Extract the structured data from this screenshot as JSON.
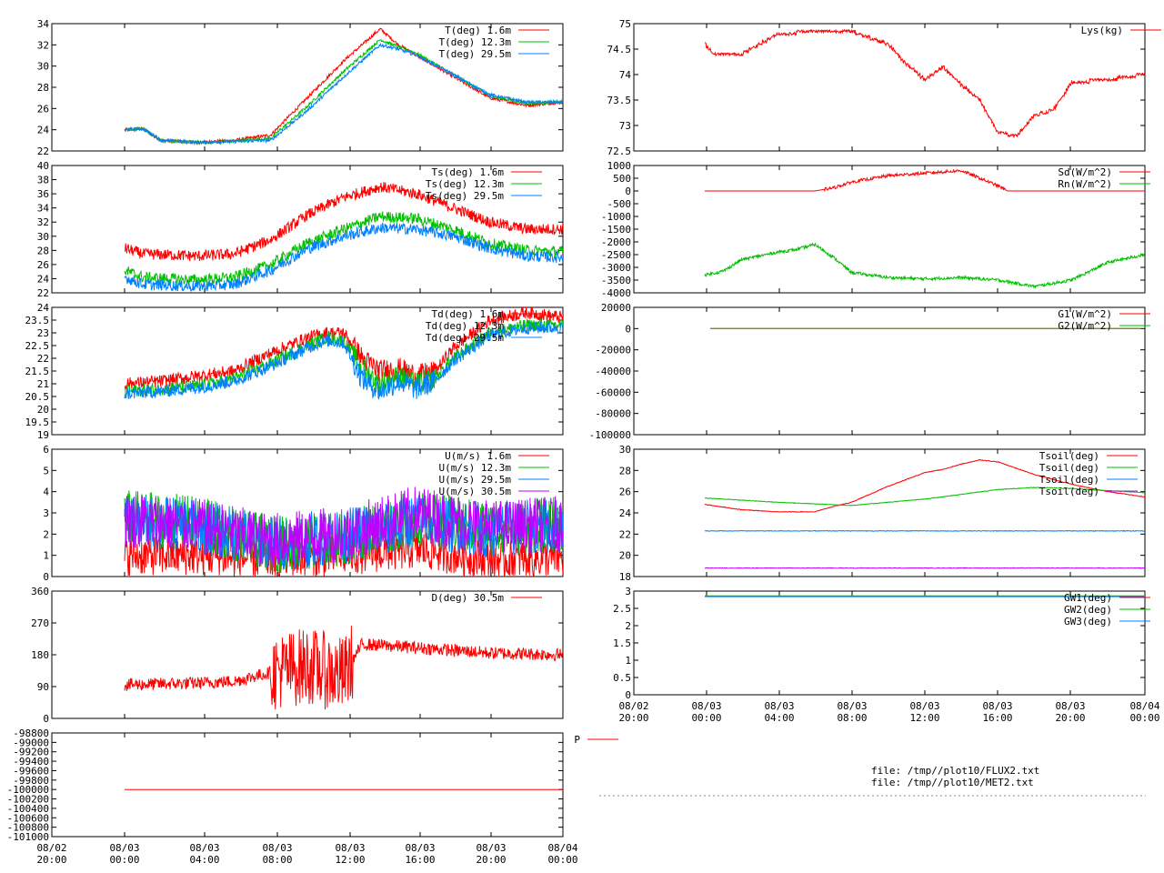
{
  "x_axis": {
    "left": {
      "ticks": [
        [
          "08/02",
          "20:00"
        ],
        [
          "08/03",
          "00:00"
        ],
        [
          "08/03",
          "04:00"
        ],
        [
          "08/03",
          "08:00"
        ],
        [
          "08/03",
          "12:00"
        ],
        [
          "08/03",
          "16:00"
        ],
        [
          "08/03",
          "20:00"
        ],
        [
          "08/04",
          "00:00"
        ]
      ]
    },
    "right": {
      "ticks": [
        [
          "08/02",
          "20:00"
        ],
        [
          "08/03",
          "00:00"
        ],
        [
          "08/03",
          "04:00"
        ],
        [
          "08/03",
          "08:00"
        ],
        [
          "08/03",
          "12:00"
        ],
        [
          "08/03",
          "16:00"
        ],
        [
          "08/03",
          "20:00"
        ],
        [
          "08/04",
          "00:00"
        ]
      ]
    }
  },
  "footer": {
    "files": [
      "file: /tmp//plot10/FLUX2.txt",
      "file: /tmp//plot10/MET2.txt"
    ]
  },
  "chart_data": [
    {
      "type": "line",
      "panel": "air-temperature",
      "ylim": [
        22,
        34
      ],
      "yticks": [
        "22",
        "24",
        "26",
        "28",
        "30",
        "32",
        "34"
      ],
      "series": [
        {
          "name": "T(deg)  1.6m",
          "color": "#ff0000",
          "x_hours": [
            0,
            1,
            2,
            4,
            6,
            8,
            10,
            12,
            14,
            15,
            16,
            18,
            20,
            22,
            24
          ],
          "values": [
            24.0,
            24.1,
            23.0,
            22.8,
            23.0,
            23.5,
            27.0,
            30.5,
            33.5,
            32.0,
            31.0,
            29.0,
            27.0,
            26.3,
            26.6
          ]
        },
        {
          "name": "T(deg) 12.3m",
          "color": "#00c000",
          "x_hours": [
            0,
            1,
            2,
            4,
            6,
            8,
            10,
            12,
            14,
            15,
            16,
            18,
            20,
            22,
            24
          ],
          "values": [
            24.0,
            24.1,
            23.0,
            22.8,
            22.9,
            23.2,
            26.2,
            29.5,
            32.5,
            31.8,
            31.2,
            29.2,
            27.2,
            26.5,
            26.6
          ]
        },
        {
          "name": "T(deg) 29.5m",
          "color": "#0080ff",
          "x_hours": [
            0,
            1,
            2,
            4,
            6,
            8,
            10,
            12,
            14,
            15,
            16,
            18,
            20,
            22,
            24
          ],
          "values": [
            24.0,
            24.1,
            23.0,
            22.8,
            22.9,
            23.0,
            25.8,
            29.0,
            32.0,
            31.6,
            31.0,
            29.2,
            27.3,
            26.6,
            26.6
          ]
        }
      ]
    },
    {
      "type": "line",
      "panel": "sonic-temperature",
      "ylim": [
        22,
        40
      ],
      "yticks": [
        "22",
        "24",
        "26",
        "28",
        "30",
        "32",
        "34",
        "36",
        "38",
        "40"
      ],
      "series": [
        {
          "name": "Ts(deg)  1.6m",
          "color": "#ff0000",
          "x_hours": [
            0,
            1,
            4,
            6,
            8,
            10,
            12,
            14,
            16,
            18,
            20,
            22,
            24
          ],
          "values": [
            28.3,
            27.5,
            27.2,
            27.5,
            29.5,
            33.0,
            35.5,
            37.0,
            36.0,
            34.0,
            32.0,
            31.0,
            31.0
          ]
        },
        {
          "name": "Ts(deg) 12.3m",
          "color": "#00c000",
          "x_hours": [
            0,
            1,
            4,
            6,
            8,
            10,
            12,
            14,
            16,
            18,
            20,
            22,
            24
          ],
          "values": [
            25.2,
            24.2,
            23.8,
            24.2,
            26.0,
            29.0,
            31.0,
            32.8,
            32.5,
            31.0,
            29.0,
            28.0,
            27.8
          ]
        },
        {
          "name": "Ts(deg) 29.5m",
          "color": "#0080ff",
          "x_hours": [
            0,
            1,
            4,
            6,
            8,
            10,
            12,
            14,
            16,
            18,
            20,
            22,
            24
          ],
          "values": [
            24.2,
            23.2,
            22.9,
            23.2,
            25.2,
            28.2,
            30.0,
            31.2,
            31.0,
            30.0,
            28.3,
            27.2,
            27.0
          ]
        }
      ]
    },
    {
      "type": "line",
      "panel": "dewpoint",
      "ylim": [
        19,
        24
      ],
      "yticks": [
        "19",
        "19.5",
        "20",
        "20.5",
        "21",
        "21.5",
        "22",
        "22.5",
        "23",
        "23.5",
        "24"
      ],
      "series": [
        {
          "name": "Td(deg)  1.6m",
          "color": "#ff0000",
          "x_hours": [
            0,
            2,
            4,
            6,
            8,
            10,
            11,
            12,
            13,
            14,
            15,
            16,
            17,
            18,
            20,
            22,
            24
          ],
          "values": [
            21.0,
            21.1,
            21.3,
            21.5,
            22.2,
            22.8,
            23.0,
            23.0,
            22.0,
            21.5,
            21.6,
            21.3,
            21.5,
            22.4,
            23.5,
            23.8,
            23.6
          ]
        },
        {
          "name": "Td(deg) 12.3m",
          "color": "#00c000",
          "x_hours": [
            0,
            2,
            4,
            6,
            8,
            10,
            11,
            12,
            13,
            14,
            15,
            16,
            17,
            18,
            20,
            22,
            24
          ],
          "values": [
            20.7,
            20.8,
            20.9,
            21.2,
            21.8,
            22.5,
            22.8,
            22.7,
            21.6,
            21.0,
            21.3,
            21.0,
            21.2,
            22.0,
            23.0,
            23.3,
            23.3
          ]
        },
        {
          "name": "Td(deg) 29.5m",
          "color": "#0080ff",
          "x_hours": [
            0,
            2,
            4,
            6,
            8,
            10,
            11,
            12,
            13,
            14,
            15,
            16,
            17,
            18,
            20,
            22,
            24
          ],
          "values": [
            20.6,
            20.7,
            20.85,
            21.1,
            21.7,
            22.4,
            22.7,
            22.6,
            21.2,
            20.7,
            21.1,
            20.8,
            21.1,
            21.9,
            22.9,
            23.2,
            23.2
          ]
        }
      ]
    },
    {
      "type": "line",
      "panel": "wind-speed",
      "ylim": [
        0,
        6
      ],
      "yticks": [
        "0",
        "1",
        "2",
        "3",
        "4",
        "5",
        "6"
      ],
      "series": [
        {
          "name": "U(m/s)  1.6m",
          "color": "#ff0000",
          "x_hours": [
            0,
            4,
            8,
            12,
            16,
            20,
            24
          ],
          "values": [
            1.0,
            1.0,
            0.8,
            1.0,
            1.3,
            0.8,
            0.9
          ]
        },
        {
          "name": "U(m/s) 12.3m",
          "color": "#00c000",
          "x_hours": [
            0,
            4,
            8,
            12,
            16,
            20,
            24
          ],
          "values": [
            2.8,
            2.5,
            1.5,
            1.8,
            2.8,
            2.2,
            2.5
          ]
        },
        {
          "name": "U(m/s) 29.5m",
          "color": "#0080ff",
          "x_hours": [
            0,
            4,
            8,
            12,
            16,
            20,
            24
          ],
          "values": [
            2.6,
            2.4,
            1.6,
            1.9,
            2.6,
            2.2,
            2.4
          ]
        },
        {
          "name": "U(m/s) 30.5m",
          "color": "#c000ff",
          "x_hours": [
            0,
            4,
            8,
            12,
            16,
            20,
            24
          ],
          "values": [
            2.7,
            2.4,
            1.7,
            2.0,
            3.0,
            2.3,
            2.5
          ]
        }
      ]
    },
    {
      "type": "line",
      "panel": "wind-direction",
      "ylim": [
        0,
        360
      ],
      "yticks": [
        "0",
        "90",
        "180",
        "270",
        "360"
      ],
      "series": [
        {
          "name": "D(deg)  30.5m",
          "color": "#ff0000",
          "x_hours": [
            0,
            4,
            6,
            8,
            10,
            12,
            13,
            16,
            20,
            24
          ],
          "values": [
            95,
            100,
            105,
            130,
            150,
            120,
            210,
            200,
            185,
            180
          ]
        }
      ]
    },
    {
      "type": "line",
      "panel": "pressure",
      "ylim": [
        -101000,
        -98800
      ],
      "yticks": [
        "-101000",
        "-100800",
        "-100600",
        "-100400",
        "-100200",
        "-100000",
        "-99800",
        "-99600",
        "-99400",
        "-99200",
        "-99000",
        "-98800"
      ],
      "series": [
        {
          "name": "P",
          "color": "#ff0000",
          "x_hours": [
            0,
            24
          ],
          "values": [
            -100000,
            -100000
          ]
        }
      ]
    },
    {
      "type": "line",
      "panel": "lysimeter",
      "ylim": [
        72.5,
        75
      ],
      "yticks": [
        "72.5",
        "73",
        "73.5",
        "74",
        "74.5",
        "75"
      ],
      "series": [
        {
          "name": "Lys(kg)",
          "color": "#ff0000",
          "x_hours": [
            0,
            0.5,
            2,
            3,
            4,
            6,
            8,
            10,
            11,
            12,
            13,
            14,
            15,
            16,
            17,
            18,
            19,
            20,
            22,
            24
          ],
          "values": [
            74.6,
            74.4,
            74.4,
            74.6,
            74.8,
            74.85,
            74.85,
            74.6,
            74.2,
            73.9,
            74.15,
            73.8,
            73.5,
            72.85,
            72.8,
            73.2,
            73.3,
            73.85,
            73.9,
            74.0
          ]
        }
      ]
    },
    {
      "type": "line",
      "panel": "radiation",
      "ylim": [
        -4000,
        1000
      ],
      "yticks": [
        "-4000",
        "-3500",
        "-3000",
        "-2500",
        "-2000",
        "-1500",
        "-1000",
        "-500",
        "0",
        "500",
        "1000"
      ],
      "series": [
        {
          "name": "Sd(W/m^2)",
          "color": "#ff0000",
          "x_hours": [
            0,
            4,
            6,
            7,
            8,
            10,
            12,
            14,
            15,
            16,
            16.5,
            24
          ],
          "values": [
            0,
            0,
            0,
            120,
            350,
            600,
            700,
            800,
            500,
            200,
            0,
            0
          ]
        },
        {
          "name": "Rn(W/m^2)",
          "color": "#00c000",
          "x_hours": [
            0,
            1,
            2,
            4,
            5,
            6,
            7,
            8,
            10,
            12,
            14,
            16,
            18,
            20,
            22,
            24
          ],
          "values": [
            -3300,
            -3150,
            -2700,
            -2400,
            -2300,
            -2100,
            -2600,
            -3200,
            -3400,
            -3450,
            -3400,
            -3500,
            -3750,
            -3500,
            -2800,
            -2500
          ]
        }
      ]
    },
    {
      "type": "line",
      "panel": "soil-heat-flux",
      "ylim": [
        -100000,
        20000
      ],
      "yticks": [
        "-100000",
        "-80000",
        "-60000",
        "-40000",
        "-20000",
        "0",
        "20000"
      ],
      "series": [
        {
          "name": "G1(W/m^2)",
          "color": "#ff0000",
          "x_hours": [
            0.3,
            24
          ],
          "values": [
            0,
            0
          ]
        },
        {
          "name": "G2(W/m^2)",
          "color": "#00c000",
          "x_hours": [
            0.3,
            24
          ],
          "values": [
            0,
            0
          ]
        }
      ]
    },
    {
      "type": "line",
      "panel": "soil-temperature",
      "ylim": [
        18,
        30
      ],
      "yticks": [
        "18",
        "20",
        "22",
        "24",
        "26",
        "28",
        "30"
      ],
      "series": [
        {
          "name": "Tsoil(deg)",
          "color": "#ff0000",
          "x_hours": [
            0,
            2,
            4,
            6,
            7,
            8,
            10,
            12,
            13,
            14,
            15,
            16,
            18,
            20,
            22,
            24
          ],
          "values": [
            24.8,
            24.3,
            24.1,
            24.1,
            24.6,
            25.0,
            26.5,
            27.8,
            28.1,
            28.6,
            29.0,
            28.8,
            27.6,
            26.7,
            26.0,
            25.5
          ]
        },
        {
          "name": "Tsoil(deg)",
          "color": "#00c000",
          "x_hours": [
            0,
            4,
            8,
            12,
            16,
            18,
            20,
            24
          ],
          "values": [
            25.4,
            25.0,
            24.7,
            25.3,
            26.2,
            26.4,
            26.3,
            25.9
          ]
        },
        {
          "name": "Tsoil(deg)",
          "color": "#0080ff",
          "x_hours": [
            0,
            24
          ],
          "values": [
            22.3,
            22.3
          ]
        },
        {
          "name": "Tsoil(deg)",
          "color": "#c000ff",
          "x_hours": [
            0,
            24
          ],
          "values": [
            18.8,
            18.8
          ]
        }
      ]
    },
    {
      "type": "line",
      "panel": "groundwater",
      "ylim": [
        0,
        3
      ],
      "yticks": [
        "0",
        "0.5",
        "1",
        "1.5",
        "2",
        "2.5",
        "3"
      ],
      "series": [
        {
          "name": "GW1(deg)",
          "color": "#ff0000",
          "x_hours": [
            0,
            24
          ],
          "values": [
            2.85,
            2.85
          ]
        },
        {
          "name": "GW2(deg)",
          "color": "#00c000",
          "x_hours": [
            0,
            24
          ],
          "values": [
            2.86,
            2.86
          ]
        },
        {
          "name": "GW3(deg)",
          "color": "#0080ff",
          "x_hours": [
            0,
            24
          ],
          "values": [
            2.84,
            2.84
          ]
        }
      ]
    }
  ]
}
